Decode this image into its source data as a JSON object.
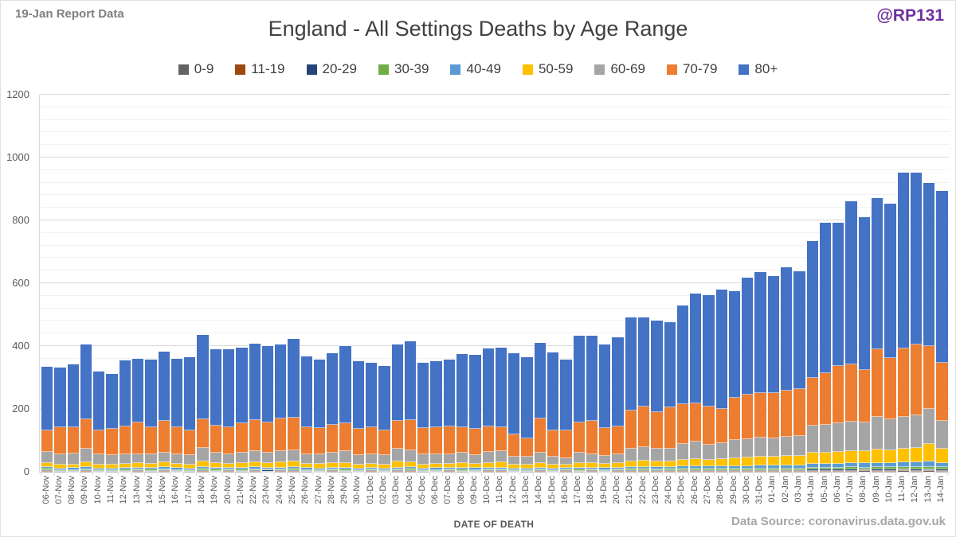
{
  "header": {
    "report_label": "19-Jan Report Data",
    "title": "England - All Settings Deaths by Age Range",
    "handle": "@RP131"
  },
  "footer": {
    "xaxis_title": "DATE OF DEATH",
    "source": "Data Source: coronavirus.data.gov.uk"
  },
  "chart_data": {
    "type": "bar",
    "stacked": true,
    "title": "England - All Settings Deaths by Age Range",
    "xlabel": "DATE OF DEATH",
    "ylabel": "",
    "ylim": [
      0,
      1200
    ],
    "yticks": [
      0,
      200,
      400,
      600,
      800,
      1000,
      1200
    ],
    "minor_grid_interval": 40,
    "grid": true,
    "legend_position": "top",
    "categories": [
      "06-Nov",
      "07-Nov",
      "08-Nov",
      "09-Nov",
      "10-Nov",
      "11-Nov",
      "12-Nov",
      "13-Nov",
      "14-Nov",
      "15-Nov",
      "16-Nov",
      "17-Nov",
      "18-Nov",
      "19-Nov",
      "20-Nov",
      "21-Nov",
      "22-Nov",
      "23-Nov",
      "24-Nov",
      "25-Nov",
      "26-Nov",
      "27-Nov",
      "28-Nov",
      "29-Nov",
      "30-Nov",
      "01-Dec",
      "02-Dec",
      "03-Dec",
      "04-Dec",
      "05-Dec",
      "06-Dec",
      "07-Dec",
      "08-Dec",
      "09-Dec",
      "10-Dec",
      "11-Dec",
      "12-Dec",
      "13-Dec",
      "14-Dec",
      "15-Dec",
      "16-Dec",
      "17-Dec",
      "18-Dec",
      "19-Dec",
      "20-Dec",
      "21-Dec",
      "22-Dec",
      "23-Dec",
      "24-Dec",
      "25-Dec",
      "26-Dec",
      "27-Dec",
      "28-Dec",
      "29-Dec",
      "30-Dec",
      "31-Dec",
      "01-Jan",
      "02-Jan",
      "03-Jan",
      "04-Jan",
      "05-Jan",
      "06-Jan",
      "07-Jan",
      "08-Jan",
      "09-Jan",
      "10-Jan",
      "11-Jan",
      "12-Jan",
      "13-Jan",
      "14-Jan"
    ],
    "series": [
      {
        "name": "0-9",
        "color": "#636363",
        "values": [
          1,
          1,
          0,
          1,
          0,
          1,
          0,
          1,
          1,
          1,
          0,
          1,
          1,
          0,
          1,
          1,
          1,
          0,
          1,
          1,
          1,
          0,
          1,
          1,
          0,
          1,
          0,
          1,
          1,
          1,
          0,
          1,
          1,
          0,
          1,
          1,
          0,
          1,
          1,
          0,
          1,
          1,
          1,
          0,
          1,
          1,
          1,
          1,
          1,
          1,
          1,
          1,
          1,
          1,
          1,
          1,
          1,
          1,
          1,
          1,
          1,
          1,
          1,
          2,
          1,
          1,
          2,
          1,
          2,
          1
        ]
      },
      {
        "name": "11-19",
        "color": "#9e480e",
        "values": [
          1,
          0,
          1,
          1,
          1,
          0,
          1,
          1,
          0,
          1,
          1,
          0,
          1,
          1,
          1,
          0,
          1,
          1,
          1,
          1,
          0,
          1,
          1,
          0,
          1,
          1,
          1,
          1,
          1,
          0,
          1,
          1,
          0,
          1,
          1,
          1,
          1,
          0,
          1,
          1,
          1,
          0,
          1,
          1,
          1,
          1,
          1,
          1,
          1,
          1,
          1,
          1,
          1,
          1,
          1,
          2,
          1,
          2,
          1,
          2,
          2,
          2,
          2,
          2,
          2,
          2,
          2,
          2,
          2,
          2
        ]
      },
      {
        "name": "20-29",
        "color": "#264478",
        "values": [
          3,
          2,
          2,
          2,
          2,
          2,
          2,
          2,
          2,
          2,
          2,
          2,
          3,
          2,
          2,
          2,
          2,
          3,
          2,
          3,
          2,
          2,
          2,
          2,
          2,
          2,
          2,
          2,
          3,
          2,
          2,
          2,
          2,
          2,
          2,
          2,
          2,
          2,
          2,
          2,
          2,
          2,
          2,
          2,
          2,
          3,
          3,
          2,
          3,
          3,
          3,
          3,
          3,
          3,
          3,
          3,
          3,
          3,
          3,
          4,
          4,
          4,
          4,
          4,
          4,
          4,
          4,
          5,
          4,
          4
        ]
      },
      {
        "name": "30-39",
        "color": "#70ad47",
        "values": [
          4,
          3,
          3,
          4,
          3,
          3,
          4,
          3,
          4,
          3,
          3,
          3,
          4,
          4,
          3,
          4,
          4,
          3,
          4,
          4,
          3,
          3,
          3,
          4,
          3,
          3,
          3,
          4,
          4,
          3,
          3,
          3,
          4,
          3,
          3,
          4,
          3,
          3,
          3,
          3,
          3,
          4,
          3,
          3,
          4,
          4,
          4,
          4,
          4,
          5,
          5,
          4,
          5,
          5,
          5,
          5,
          5,
          5,
          6,
          6,
          6,
          6,
          7,
          6,
          7,
          7,
          7,
          7,
          7,
          7
        ]
      },
      {
        "name": "40-49",
        "color": "#5b9bd5",
        "values": [
          6,
          5,
          6,
          7,
          5,
          5,
          6,
          6,
          5,
          7,
          6,
          5,
          7,
          6,
          6,
          6,
          7,
          6,
          6,
          7,
          6,
          5,
          6,
          6,
          5,
          5,
          5,
          6,
          6,
          5,
          6,
          5,
          6,
          6,
          6,
          6,
          5,
          5,
          6,
          5,
          5,
          6,
          6,
          6,
          6,
          7,
          7,
          7,
          7,
          8,
          8,
          8,
          8,
          9,
          9,
          9,
          10,
          10,
          10,
          12,
          12,
          13,
          13,
          13,
          14,
          14,
          15,
          15,
          18,
          15
        ]
      },
      {
        "name": "50-59",
        "color": "#ffc000",
        "values": [
          13,
          13,
          12,
          15,
          11,
          12,
          13,
          14,
          14,
          16,
          14,
          12,
          17,
          15,
          13,
          14,
          16,
          15,
          16,
          17,
          13,
          14,
          14,
          16,
          13,
          14,
          12,
          18,
          16,
          13,
          13,
          14,
          15,
          13,
          15,
          16,
          12,
          12,
          15,
          11,
          10,
          15,
          14,
          13,
          14,
          18,
          19,
          18,
          17,
          21,
          23,
          21,
          22,
          25,
          26,
          27,
          28,
          29,
          30,
          35,
          36,
          38,
          40,
          38,
          42,
          40,
          43,
          45,
          55,
          45
        ]
      },
      {
        "name": "60-69",
        "color": "#a5a5a5",
        "values": [
          36,
          33,
          34,
          43,
          33,
          30,
          30,
          30,
          30,
          32,
          30,
          30,
          42,
          32,
          30,
          33,
          34,
          34,
          36,
          35,
          32,
          31,
          33,
          36,
          30,
          30,
          30,
          41,
          37,
          32,
          32,
          31,
          33,
          29,
          35,
          36,
          24,
          24,
          32,
          25,
          21,
          32,
          29,
          26,
          28,
          40,
          43,
          41,
          41,
          49,
          55,
          49,
          50,
          57,
          60,
          61,
          59,
          61,
          63,
          88,
          89,
          91,
          93,
          93,
          105,
          100,
          102,
          105,
          111,
          87
        ]
      },
      {
        "name": "70-79",
        "color": "#ed7d31",
        "values": [
          67,
          85,
          85,
          94,
          76,
          85,
          89,
          100,
          87,
          101,
          87,
          79,
          93,
          86,
          87,
          95,
          99,
          95,
          103,
          104,
          85,
          83,
          90,
          90,
          83,
          85,
          78,
          90,
          97,
          83,
          86,
          87,
          82,
          83,
          81,
          76,
          72,
          59,
          110,
          85,
          89,
          97,
          105,
          89,
          88,
          122,
          130,
          117,
          130,
          127,
          122,
          121,
          111,
          134,
          140,
          143,
          145,
          147,
          150,
          152,
          163,
          183,
          182,
          167,
          214,
          195,
          218,
          226,
          202,
          186
        ]
      },
      {
        "name": "80+",
        "color": "#4472c4",
        "values": [
          204,
          191,
          199,
          238,
          189,
          173,
          209,
          202,
          215,
          220,
          216,
          232,
          268,
          245,
          246,
          239,
          244,
          243,
          235,
          251,
          224,
          219,
          228,
          245,
          216,
          206,
          206,
          243,
          250,
          207,
          209,
          213,
          232,
          235,
          249,
          253,
          259,
          258,
          240,
          248,
          226,
          276,
          272,
          266,
          284,
          295,
          283,
          289,
          273,
          315,
          350,
          355,
          380,
          341,
          372,
          385,
          371,
          392,
          374,
          434,
          479,
          454,
          519,
          485,
          482,
          490,
          559,
          546,
          519,
          548
        ]
      }
    ]
  }
}
